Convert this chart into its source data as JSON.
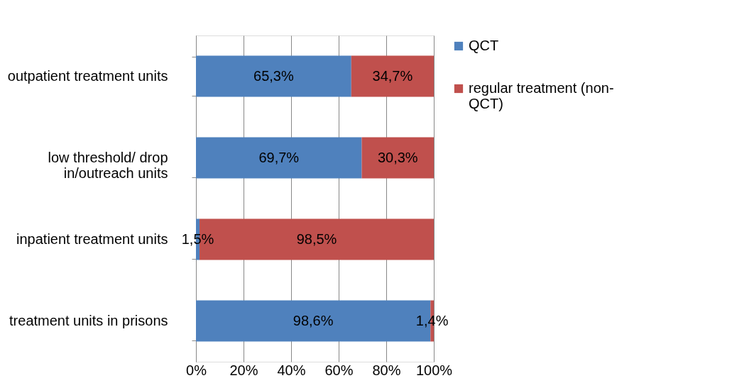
{
  "chart_data": {
    "type": "bar",
    "orientation": "horizontal",
    "stacked": true,
    "categories": [
      "outpatient treatment units",
      "low threshold/ drop\nin/outreach units",
      "inpatient treatment units",
      "treatment units in prisons"
    ],
    "series": [
      {
        "name": "QCT",
        "color": "#4f81bd",
        "values": [
          65.3,
          69.7,
          1.5,
          98.6
        ],
        "value_labels": [
          "65,3%",
          "69,7%",
          "1,5%",
          "98,6%"
        ]
      },
      {
        "name": "regular treatment (non-\nQCT)",
        "color": "#c0504d",
        "values": [
          34.7,
          30.3,
          98.5,
          1.4
        ],
        "value_labels": [
          "34,7%",
          "30,3%",
          "98,5%",
          "1,4%"
        ]
      }
    ],
    "xlim": [
      0,
      100
    ],
    "xticks": [
      {
        "value": 0,
        "label": "0%"
      },
      {
        "value": 20,
        "label": "20%"
      },
      {
        "value": 40,
        "label": "40%"
      },
      {
        "value": 60,
        "label": "60%"
      },
      {
        "value": 80,
        "label": "80%"
      },
      {
        "value": 100,
        "label": "100%"
      }
    ],
    "grid": "x",
    "legend": "right"
  }
}
